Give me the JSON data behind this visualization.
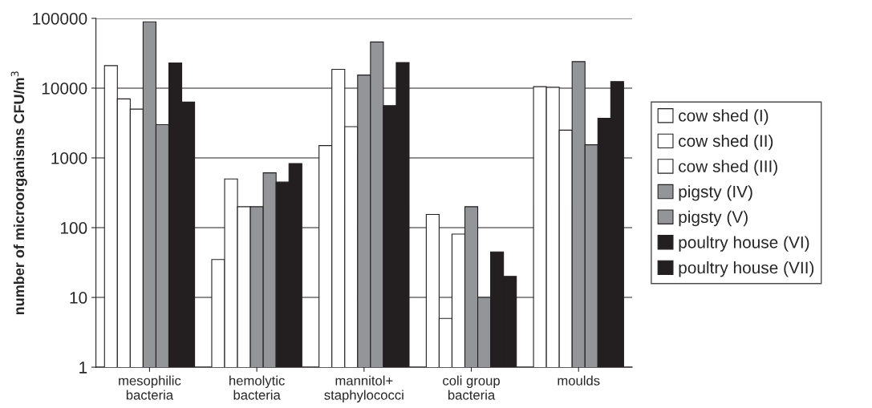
{
  "chart_data": {
    "type": "bar",
    "ylabel": "number of microorganisms CFU/m$^{3}$",
    "categories": [
      "mesophilic\nbacteria",
      "hemolytic\nbacteria",
      "mannitol+\nstaphylococci",
      "coli group\nbacteria",
      "moulds"
    ],
    "series": [
      {
        "name": "cow shed (I)",
        "color": "#ffffff",
        "values": [
          21000,
          35,
          1500,
          155,
          10500
        ]
      },
      {
        "name": "cow shed (II)",
        "color": "#ffffff",
        "values": [
          7000,
          500,
          18600,
          5,
          10300
        ]
      },
      {
        "name": "cow shed (III)",
        "color": "#ffffff",
        "values": [
          5000,
          200,
          2800,
          81,
          2500
        ]
      },
      {
        "name": "pigsty (IV)",
        "color": "#939598",
        "values": [
          89000,
          200,
          15400,
          200,
          24000
        ]
      },
      {
        "name": "pigsty (V)",
        "color": "#939598",
        "values": [
          3000,
          610,
          45800,
          10,
          1540
        ]
      },
      {
        "name": "poultry house (VI)",
        "color": "#231f20",
        "values": [
          23000,
          450,
          5600,
          45,
          3700
        ]
      },
      {
        "name": "poultry house (VII)",
        "color": "#231f20",
        "values": [
          6300,
          830,
          23300,
          20,
          12400
        ]
      }
    ],
    "log": "y",
    "ylim": [
      1,
      100000
    ],
    "yticks": [
      1,
      10,
      100,
      1000,
      10000,
      100000
    ],
    "grid": "y",
    "legend": "right"
  }
}
